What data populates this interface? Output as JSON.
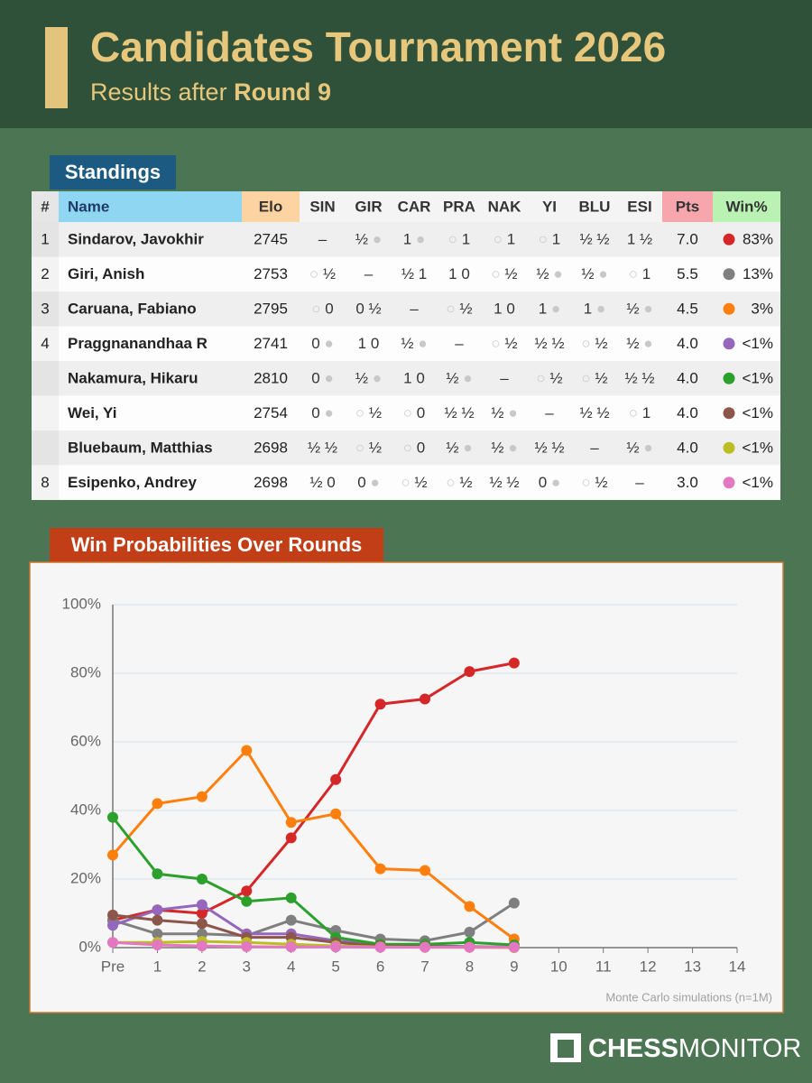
{
  "header": {
    "title": "Candidates Tournament 2026",
    "subtitle": "Results after",
    "round": "Round 9"
  },
  "standings": {
    "title": "Standings",
    "columns": [
      "#",
      "Name",
      "Elo",
      "SIN",
      "GIR",
      "CAR",
      "PRA",
      "NAK",
      "YI",
      "BLU",
      "ESI",
      "Pts",
      "Win%"
    ],
    "rows": [
      {
        "rank": "1",
        "name": "Sindarov, Javokhir",
        "elo": 2745,
        "results": [
          "–",
          "½ ●",
          "1 ●",
          "○ 1",
          "○ 1",
          "○ 1",
          "½ ½",
          "1 ½"
        ],
        "pts": "7.0",
        "win": "83%"
      },
      {
        "rank": "2",
        "name": "Giri, Anish",
        "elo": 2753,
        "results": [
          "○ ½",
          "–",
          "½ 1",
          "1 0",
          "○ ½",
          "½ ●",
          "½ ●",
          "○ 1"
        ],
        "pts": "5.5",
        "win": "13%"
      },
      {
        "rank": "3",
        "name": "Caruana, Fabiano",
        "elo": 2795,
        "results": [
          "○ 0",
          "0 ½",
          "–",
          "○ ½",
          "1 0",
          "1 ●",
          "1 ●",
          "½ ●"
        ],
        "pts": "4.5",
        "win": "3%"
      },
      {
        "rank": "4",
        "name": "Praggnanandhaa R",
        "elo": 2741,
        "results": [
          "0 ●",
          "1 0",
          "½ ●",
          "–",
          "○ ½",
          "½ ½",
          "○ ½",
          "½ ●"
        ],
        "pts": "4.0",
        "win": "<1%"
      },
      {
        "rank": null,
        "name": "Nakamura, Hikaru",
        "elo": 2810,
        "results": [
          "0 ●",
          "½ ●",
          "1 0",
          "½ ●",
          "–",
          "○ ½",
          "○ ½",
          "½ ½"
        ],
        "pts": "4.0",
        "win": "<1%"
      },
      {
        "rank": null,
        "name": "Wei, Yi",
        "elo": 2754,
        "results": [
          "0 ●",
          "○ ½",
          "○ 0",
          "½ ½",
          "½ ●",
          "–",
          "½ ½",
          "○ 1"
        ],
        "pts": "4.0",
        "win": "<1%"
      },
      {
        "rank": null,
        "name": "Bluebaum, Matthias",
        "elo": 2698,
        "results": [
          "½ ½",
          "○ ½",
          "○ 0",
          "½ ●",
          "½ ●",
          "½ ½",
          "–",
          "½ ●"
        ],
        "pts": "4.0",
        "win": "<1%"
      },
      {
        "rank": "8",
        "name": "Esipenko, Andrey",
        "elo": 2698,
        "results": [
          "½ 0",
          "0 ●",
          "○ ½",
          "○ ½",
          "½ ½",
          "0 ●",
          "○ ½",
          "–"
        ],
        "pts": "3.0",
        "win": "<1%"
      }
    ]
  },
  "chart_data": {
    "type": "line",
    "title": "Win Probabilities Over Rounds",
    "categories": [
      "Pre",
      "1",
      "2",
      "3",
      "4",
      "5",
      "6",
      "7",
      "8",
      "9",
      "10",
      "11",
      "12",
      "13",
      "14"
    ],
    "series": [
      {
        "color": "#d62728",
        "values": [
          8,
          11,
          10,
          16.5,
          32,
          49,
          71,
          72.5,
          80.5,
          83,
          null,
          null,
          null,
          null,
          null
        ]
      },
      {
        "color": "#7f7f7f",
        "values": [
          8,
          4,
          4,
          3.5,
          8,
          5,
          2.5,
          2,
          4.5,
          13,
          null,
          null,
          null,
          null,
          null
        ]
      },
      {
        "color": "#ff7f0e",
        "values": [
          27,
          42,
          44,
          57.5,
          36.5,
          39,
          23,
          22.5,
          12,
          2.5,
          null,
          null,
          null,
          null,
          null
        ]
      },
      {
        "color": "#9467bd",
        "values": [
          6.5,
          11,
          12.5,
          4,
          4,
          2,
          1,
          0.5,
          0.3,
          0.2,
          null,
          null,
          null,
          null,
          null
        ]
      },
      {
        "color": "#2ca02c",
        "values": [
          38,
          21.5,
          20,
          13.5,
          14.5,
          3,
          1,
          1,
          1.5,
          0.8,
          null,
          null,
          null,
          null,
          null
        ]
      },
      {
        "color": "#8c564b",
        "values": [
          9.5,
          8,
          7,
          3,
          3,
          1.5,
          0.5,
          0.3,
          0.2,
          0.1,
          null,
          null,
          null,
          null,
          null
        ]
      },
      {
        "color": "#bcbd22",
        "values": [
          1.5,
          1.5,
          1.8,
          1.5,
          1,
          0.5,
          0.2,
          0.1,
          0.1,
          0,
          null,
          null,
          null,
          null,
          null
        ]
      },
      {
        "color": "#e377c2",
        "values": [
          1.5,
          0.8,
          0.5,
          0.3,
          0.2,
          0.2,
          0.1,
          0.1,
          0.1,
          0.1,
          null,
          null,
          null,
          null,
          null
        ]
      }
    ],
    "ylim": [
      0,
      100
    ],
    "yticks": [
      {
        "value": 0,
        "label": "0%"
      },
      {
        "value": 20,
        "label": "20%"
      },
      {
        "value": 40,
        "label": "40%"
      },
      {
        "value": 60,
        "label": "60%"
      },
      {
        "value": 80,
        "label": "80%"
      },
      {
        "value": 100,
        "label": "100%"
      }
    ],
    "grid": true,
    "note": "Monte Carlo simulations (n=1M)"
  },
  "brand": {
    "bold": "CHESS",
    "light": "MONITOR"
  }
}
